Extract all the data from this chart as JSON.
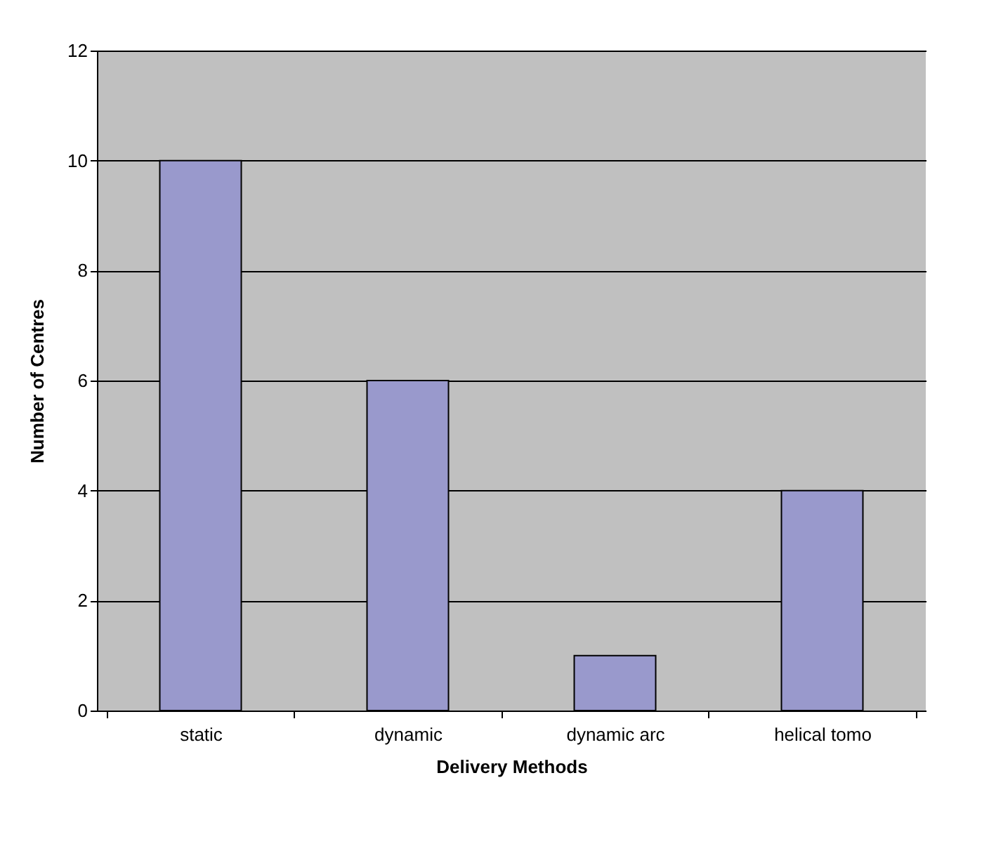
{
  "chart_data": {
    "type": "bar",
    "xlabel": "Delivery Methods",
    "ylabel": "Number of Centres",
    "categories": [
      "static",
      "dynamic",
      "dynamic arc",
      "helical tomo"
    ],
    "values": [
      10,
      6,
      1,
      4
    ],
    "color": "#9999cc",
    "ylim": [
      0,
      12
    ],
    "yticks": [
      0,
      2,
      4,
      6,
      8,
      10,
      12
    ],
    "grid": "y"
  }
}
